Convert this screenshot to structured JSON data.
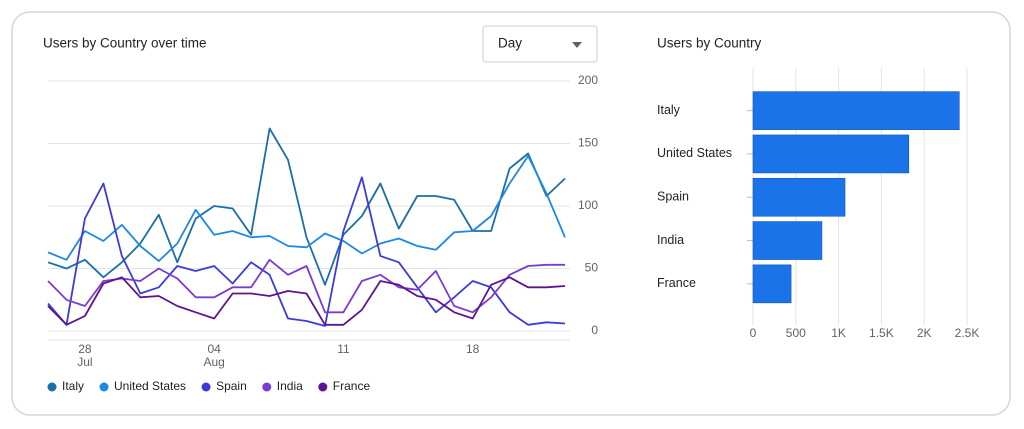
{
  "controls": {
    "period": "Day"
  },
  "chart_data": [
    {
      "type": "line",
      "title": "Users by Country over time",
      "categories": [
        null,
        null,
        "28 Jul",
        null,
        null,
        null,
        null,
        null,
        null,
        "04 Aug",
        null,
        null,
        null,
        null,
        null,
        null,
        "11",
        null,
        null,
        null,
        null,
        null,
        null,
        "18",
        null,
        null,
        null,
        null,
        null
      ],
      "series": [
        {
          "name": "Italy",
          "color": "#1a6fa5",
          "values": [
            55,
            50,
            57,
            43,
            55,
            70,
            93,
            55,
            90,
            100,
            98,
            77,
            162,
            137,
            75,
            37,
            77,
            92,
            118,
            82,
            108,
            108,
            105,
            80,
            80,
            130,
            142,
            108,
            122
          ]
        },
        {
          "name": "United States",
          "color": "#1e88e5",
          "values": [
            63,
            57,
            80,
            72,
            85,
            68,
            56,
            70,
            97,
            77,
            80,
            75,
            76,
            68,
            67,
            78,
            72,
            62,
            70,
            74,
            68,
            65,
            79,
            80,
            92,
            118,
            140,
            110,
            75
          ]
        },
        {
          "name": "Spain",
          "color": "#3d3bd8",
          "values": [
            22,
            5,
            90,
            118,
            60,
            30,
            35,
            52,
            48,
            52,
            38,
            55,
            45,
            10,
            8,
            4,
            80,
            123,
            60,
            55,
            35,
            15,
            27,
            40,
            35,
            15,
            5,
            7,
            6
          ]
        },
        {
          "name": "India",
          "color": "#7b3ad0",
          "values": [
            40,
            25,
            20,
            40,
            42,
            40,
            50,
            42,
            27,
            27,
            35,
            35,
            57,
            45,
            52,
            15,
            15,
            40,
            45,
            35,
            33,
            48,
            20,
            15,
            27,
            45,
            52,
            53,
            53
          ]
        },
        {
          "name": "France",
          "color": "#5e1490",
          "values": [
            20,
            5,
            12,
            38,
            43,
            27,
            28,
            20,
            15,
            10,
            30,
            30,
            28,
            32,
            30,
            5,
            5,
            17,
            40,
            37,
            28,
            25,
            15,
            10,
            37,
            43,
            35,
            35,
            36
          ]
        }
      ],
      "ylim": [
        0,
        200
      ],
      "yticks": [
        0,
        50,
        100,
        150,
        200
      ],
      "grid": true,
      "legend": "bottom"
    },
    {
      "type": "hbar",
      "title": "Users by Country",
      "categories": [
        "Italy",
        "United States",
        "Spain",
        "India",
        "France"
      ],
      "values": [
        2410,
        1820,
        1075,
        805,
        445
      ],
      "color": "#1a73e8",
      "xlim": [
        0,
        2500
      ],
      "xticks": [
        0,
        500,
        {
          "value": 1000,
          "label": "1K"
        },
        {
          "value": 1500,
          "label": "1.5K"
        },
        {
          "value": 2000,
          "label": "2K"
        },
        {
          "value": 2500,
          "label": "2.5K"
        }
      ],
      "grid": true
    }
  ]
}
